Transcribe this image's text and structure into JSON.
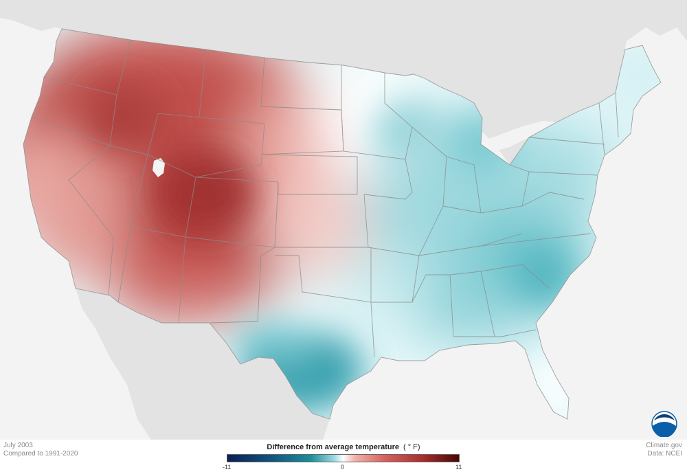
{
  "map": {
    "period": "July 2003",
    "baseline": "Compared to 1991-2020",
    "source_site": "Climate.gov",
    "source_data": "Data: NCEI",
    "logo_text": "NOAA",
    "logo_icon": "noaa-logo-icon"
  },
  "legend": {
    "title": "Difference from average temperature",
    "unit": "( ° F)",
    "min_label": "-11",
    "mid_label": "0",
    "max_label": "11",
    "range": [
      -11,
      11
    ],
    "colors": {
      "cold_extreme": "#0b1f52",
      "cold": "#1c8d9a",
      "neutral": "#ffffff",
      "warm": "#d5625d",
      "warm_extreme": "#4a0606"
    }
  },
  "colors": {
    "background_land": "#e3e3e3",
    "background_water": "#f3f3f3",
    "state_borders": "#8c8c8c",
    "noaa_blue": "#0a5fa8"
  }
}
